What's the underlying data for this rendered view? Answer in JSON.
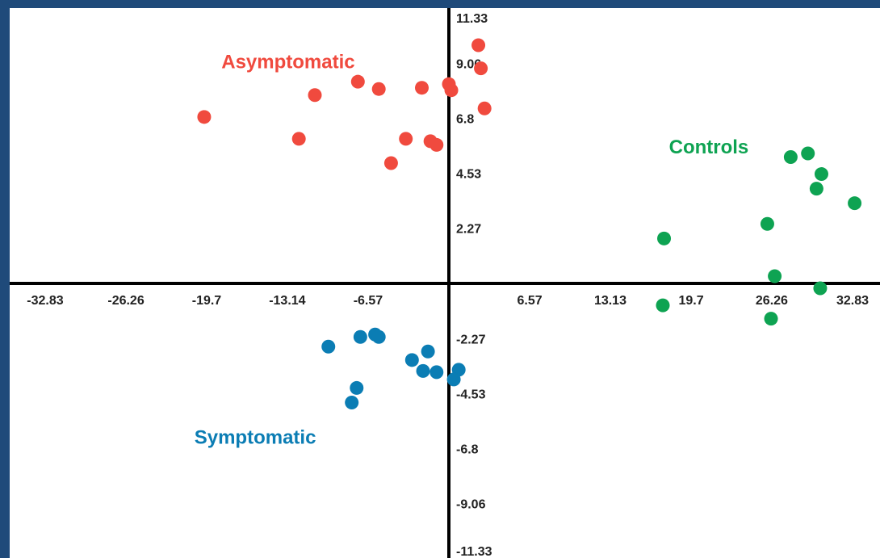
{
  "colors": {
    "frame": "#1f4a7a",
    "background": "#ffffff",
    "axis": "#000000",
    "asymptomatic": "#f04a3e",
    "controls": "#0ea352",
    "symptomatic": "#0b7db4"
  },
  "chart_data": {
    "type": "scatter",
    "title": "",
    "xlabel": "",
    "ylabel": "",
    "xlim": [
      -32.83,
      32.83
    ],
    "ylim": [
      -11.33,
      11.33
    ],
    "grid": false,
    "x_ticks": [
      "-32.83",
      "-26.26",
      "-19.7",
      "-13.14",
      "-6.57",
      "6.57",
      "13.13",
      "19.7",
      "26.26",
      "32.83"
    ],
    "y_ticks": [
      "11.33",
      "9.06",
      "6.8",
      "4.53",
      "2.27",
      "-2.27",
      "-4.53",
      "-6.8",
      "-9.06",
      "-11.33"
    ],
    "series": [
      {
        "name": "Asymptomatic",
        "color": "#f04a3e",
        "points": [
          {
            "x": -19.9,
            "y": 6.85
          },
          {
            "x": -10.9,
            "y": 7.75
          },
          {
            "x": -12.2,
            "y": 5.95
          },
          {
            "x": -7.4,
            "y": 8.3
          },
          {
            "x": -5.7,
            "y": 8.0
          },
          {
            "x": -2.2,
            "y": 8.05
          },
          {
            "x": 0.0,
            "y": 8.2
          },
          {
            "x": 0.2,
            "y": 7.95
          },
          {
            "x": 2.4,
            "y": 9.8
          },
          {
            "x": 2.6,
            "y": 8.85
          },
          {
            "x": 2.9,
            "y": 7.2
          },
          {
            "x": -3.5,
            "y": 5.95
          },
          {
            "x": -1.5,
            "y": 5.85
          },
          {
            "x": -1.0,
            "y": 5.7
          },
          {
            "x": -4.7,
            "y": 4.95
          }
        ]
      },
      {
        "name": "Controls",
        "color": "#0ea352",
        "points": [
          {
            "x": 27.8,
            "y": 5.2
          },
          {
            "x": 29.2,
            "y": 5.35
          },
          {
            "x": 30.3,
            "y": 4.5
          },
          {
            "x": 29.9,
            "y": 3.9
          },
          {
            "x": 33.0,
            "y": 3.3
          },
          {
            "x": 25.9,
            "y": 2.45
          },
          {
            "x": 17.5,
            "y": 1.85
          },
          {
            "x": 26.5,
            "y": 0.3
          },
          {
            "x": 30.2,
            "y": -0.2
          },
          {
            "x": 17.4,
            "y": -0.9
          },
          {
            "x": 26.2,
            "y": -1.45
          }
        ]
      },
      {
        "name": "Symptomatic",
        "color": "#0b7db4",
        "points": [
          {
            "x": -9.8,
            "y": -2.6
          },
          {
            "x": -7.2,
            "y": -2.2
          },
          {
            "x": -6.0,
            "y": -2.1
          },
          {
            "x": -5.7,
            "y": -2.2
          },
          {
            "x": -3.0,
            "y": -3.15
          },
          {
            "x": -1.7,
            "y": -2.8
          },
          {
            "x": -2.1,
            "y": -3.6
          },
          {
            "x": -1.0,
            "y": -3.65
          },
          {
            "x": 0.8,
            "y": -3.55
          },
          {
            "x": 0.4,
            "y": -3.95
          },
          {
            "x": -7.5,
            "y": -4.3
          },
          {
            "x": -7.9,
            "y": -4.9
          }
        ]
      }
    ],
    "annotations": [
      {
        "text": "Asymptomatic",
        "x": -18.5,
        "y": 8.85,
        "color": "#f04a3e"
      },
      {
        "text": "Controls",
        "x": 17.9,
        "y": 5.35,
        "color": "#0ea352"
      },
      {
        "text": "Symptomatic",
        "x": -20.7,
        "y": -6.6,
        "color": "#0b7db4"
      }
    ]
  }
}
